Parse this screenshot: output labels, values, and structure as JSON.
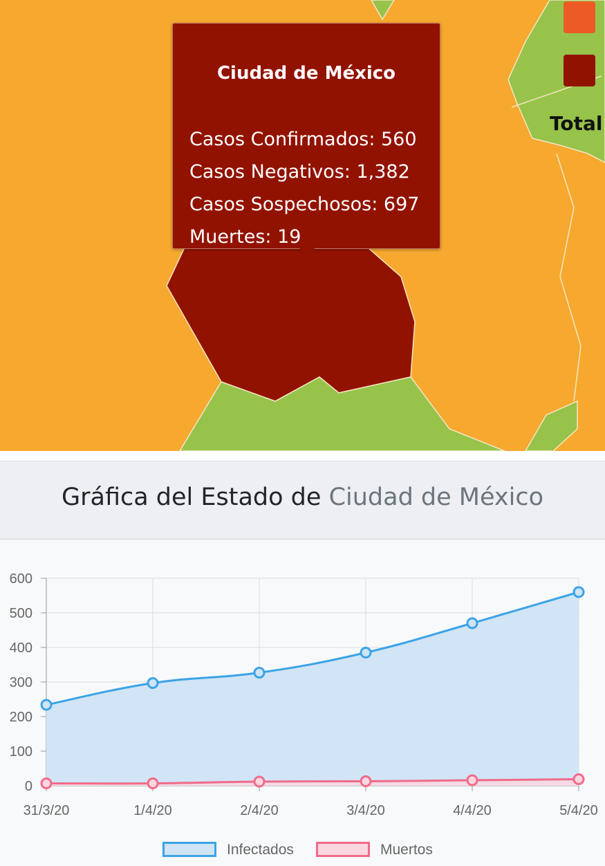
{
  "map": {
    "tooltip": {
      "title": "Ciudad de México",
      "lines": [
        "Casos Confirmados: 560",
        "Casos Negativos: 1,382",
        "Casos Sospechosos: 697",
        "Muertes: 19"
      ]
    },
    "legend": {
      "total_label": "Total",
      "colors": [
        "#ec5b25",
        "#921200"
      ]
    },
    "colors": {
      "orange": "#f6a92e",
      "green": "#98c34a",
      "dark_red": "#921200"
    }
  },
  "header": {
    "prefix": "Gráfica del Estado de ",
    "state": "Ciudad de México"
  },
  "chart_data": {
    "type": "line",
    "categories": [
      "31/3/20",
      "1/4/20",
      "2/4/20",
      "3/4/20",
      "4/4/20",
      "5/4/20"
    ],
    "series": [
      {
        "name": "Infectados",
        "values": [
          234,
          297,
          327,
          385,
          470,
          560
        ],
        "color": "#3ca3e6",
        "fill": "#cfe4f5"
      },
      {
        "name": "Muertos",
        "values": [
          7,
          7,
          12,
          13,
          16,
          19
        ],
        "color": "#f06b8a",
        "fill": "#fbd7e0"
      }
    ],
    "ylim": [
      0,
      600
    ],
    "yticks": [
      "0",
      "100",
      "200",
      "300",
      "400",
      "500",
      "600"
    ],
    "grid": true,
    "legend_position": "bottom"
  }
}
